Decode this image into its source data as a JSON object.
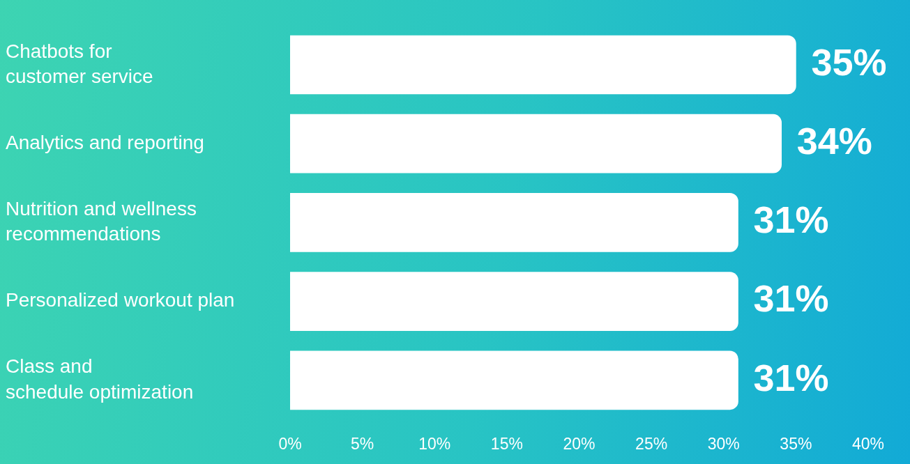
{
  "chart_data": {
    "type": "bar",
    "orientation": "horizontal",
    "categories": [
      "Chatbots for\ncustomer service",
      "Analytics and reporting",
      "Nutrition and wellness\nrecommendations",
      "Personalized workout plan",
      "Class and\nschedule optimization"
    ],
    "values": [
      35,
      34,
      31,
      31,
      31
    ],
    "value_labels": [
      "35%",
      "34%",
      "31%",
      "31%",
      "31%"
    ],
    "color": "#ffffff",
    "xlim": [
      0,
      40
    ],
    "xticks": [
      {
        "value": 0,
        "label": "0%"
      },
      {
        "value": 5,
        "label": "5%"
      },
      {
        "value": 10,
        "label": "10%"
      },
      {
        "value": 15,
        "label": "15%"
      },
      {
        "value": 20,
        "label": "20%"
      },
      {
        "value": 25,
        "label": "25%"
      },
      {
        "value": 30,
        "label": "30%"
      },
      {
        "value": 35,
        "label": "35%"
      },
      {
        "value": 40,
        "label": "40%"
      }
    ],
    "grid": false
  }
}
